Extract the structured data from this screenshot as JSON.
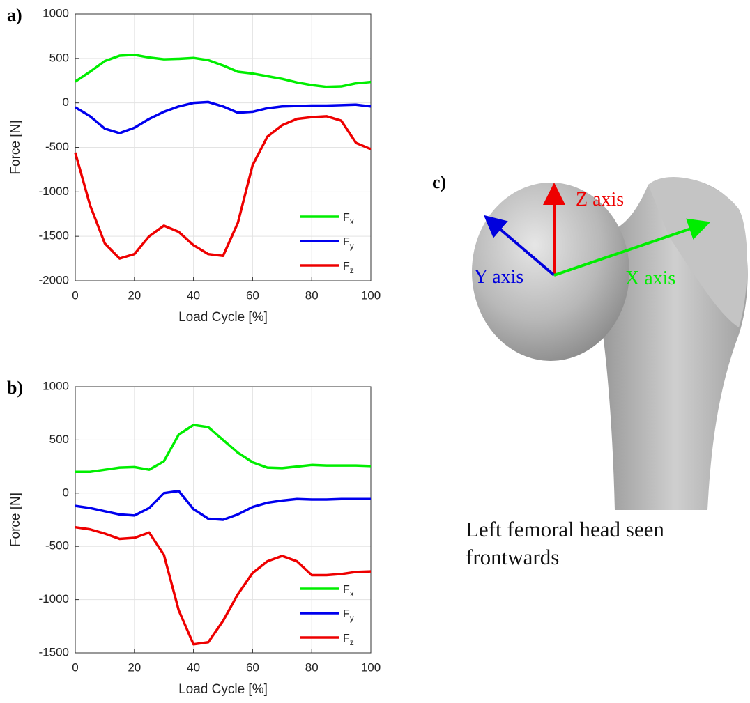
{
  "chart_data": [
    {
      "type": "line",
      "panel_label": "a)",
      "xlabel": "Load Cycle [%]",
      "ylabel": "Force [N]",
      "x": [
        0,
        5,
        10,
        15,
        20,
        25,
        30,
        35,
        40,
        45,
        50,
        55,
        60,
        65,
        70,
        75,
        80,
        85,
        90,
        95,
        100
      ],
      "series": [
        {
          "name": "Fx",
          "color": "#00ee00",
          "values": [
            240,
            350,
            470,
            530,
            540,
            510,
            490,
            495,
            505,
            480,
            420,
            350,
            330,
            300,
            270,
            230,
            200,
            180,
            185,
            220,
            235
          ]
        },
        {
          "name": "Fy",
          "color": "#0000ee",
          "values": [
            -50,
            -150,
            -290,
            -340,
            -280,
            -180,
            -100,
            -40,
            0,
            10,
            -40,
            -110,
            -100,
            -60,
            -40,
            -35,
            -30,
            -30,
            -25,
            -20,
            -40
          ]
        },
        {
          "name": "Fz",
          "color": "#ee0000",
          "values": [
            -560,
            -1150,
            -1580,
            -1750,
            -1700,
            -1500,
            -1380,
            -1450,
            -1600,
            -1700,
            -1720,
            -1350,
            -700,
            -380,
            -250,
            -180,
            -160,
            -150,
            -200,
            -450,
            -520
          ]
        }
      ],
      "xlim": [
        0,
        100
      ],
      "xticks": [
        0,
        20,
        40,
        60,
        80,
        100
      ],
      "ylim": [
        -2000,
        1000
      ],
      "yticks": [
        -2000,
        -1500,
        -1000,
        -500,
        0,
        500,
        1000
      ],
      "grid": true,
      "legend": "lower right"
    },
    {
      "type": "line",
      "panel_label": "b)",
      "xlabel": "Load Cycle [%]",
      "ylabel": "Force [N]",
      "x": [
        0,
        5,
        10,
        15,
        20,
        25,
        30,
        35,
        40,
        45,
        50,
        55,
        60,
        65,
        70,
        75,
        80,
        85,
        90,
        95,
        100
      ],
      "series": [
        {
          "name": "Fx",
          "color": "#00ee00",
          "values": [
            200,
            200,
            220,
            240,
            245,
            220,
            300,
            550,
            640,
            620,
            500,
            380,
            290,
            240,
            235,
            250,
            265,
            260,
            260,
            260,
            255
          ]
        },
        {
          "name": "Fy",
          "color": "#0000ee",
          "values": [
            -120,
            -140,
            -170,
            -200,
            -210,
            -140,
            0,
            20,
            -150,
            -240,
            -250,
            -200,
            -130,
            -90,
            -70,
            -55,
            -60,
            -60,
            -55,
            -55,
            -55
          ]
        },
        {
          "name": "Fz",
          "color": "#ee0000",
          "values": [
            -320,
            -340,
            -380,
            -430,
            -420,
            -370,
            -580,
            -1100,
            -1420,
            -1400,
            -1200,
            -950,
            -750,
            -640,
            -590,
            -640,
            -770,
            -770,
            -760,
            -740,
            -735
          ]
        }
      ],
      "xlim": [
        0,
        100
      ],
      "xticks": [
        0,
        20,
        40,
        60,
        80,
        100
      ],
      "ylim": [
        -1500,
        1000
      ],
      "yticks": [
        -1500,
        -1000,
        -500,
        0,
        500,
        1000
      ],
      "grid": true,
      "legend": "lower right"
    }
  ],
  "illustration": {
    "panel_label": "c)",
    "z_axis": "Z axis",
    "y_axis": "Y axis",
    "x_axis": "X axis",
    "caption": [
      "Left femoral head seen",
      "frontwards"
    ]
  }
}
